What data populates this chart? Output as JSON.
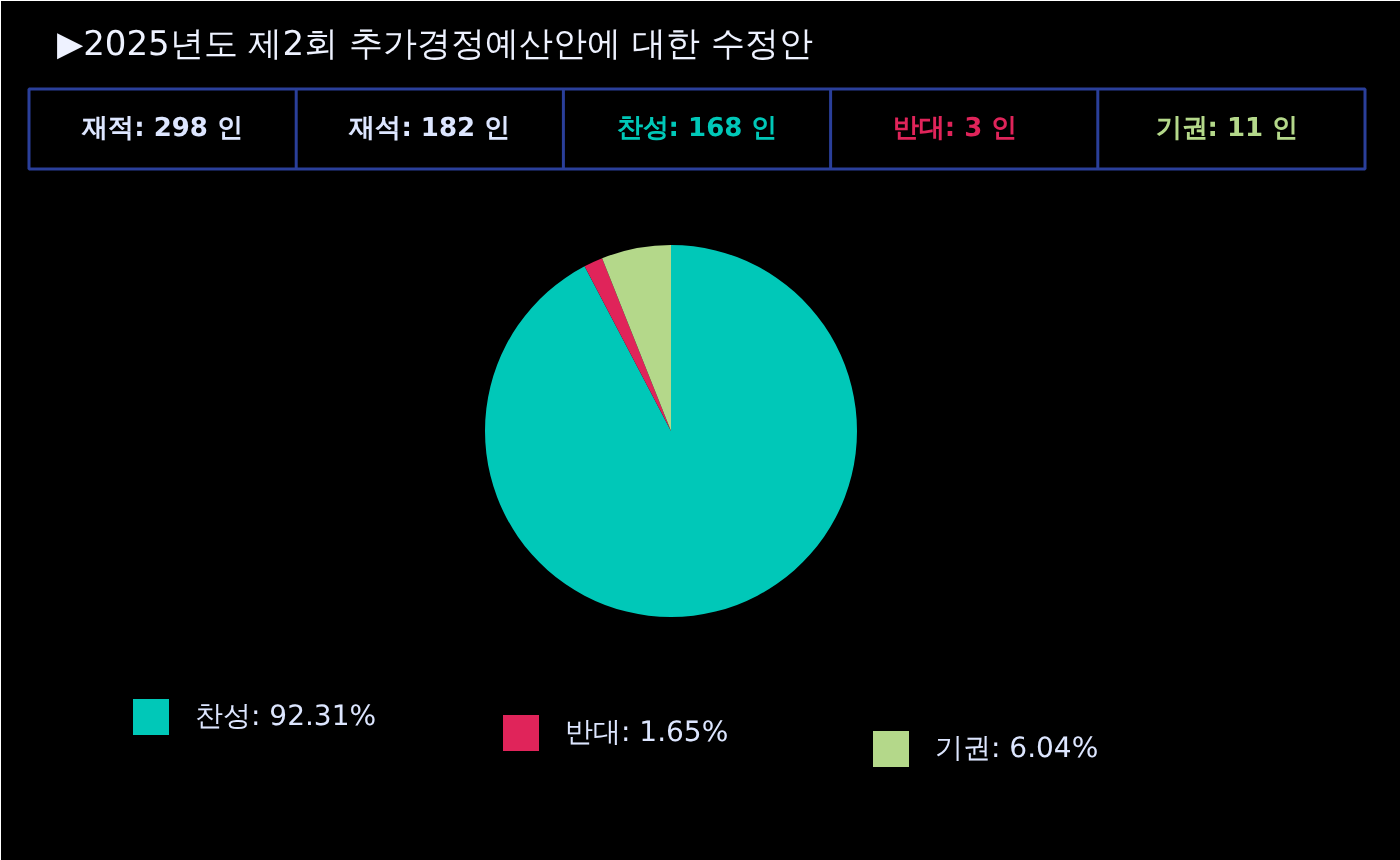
{
  "chart_data": {
    "type": "pie",
    "title": "▶2025년도 제2회 추가경정예산안에 대한 수정안",
    "annotations": [
      "재적: 298 인",
      "재석: 182 인",
      "찬성: 168 인",
      "반대:   3 인",
      "기권:  11 인"
    ],
    "categories": [
      "찬성",
      "반대",
      "기권"
    ],
    "values": [
      92.31,
      1.65,
      6.04
    ],
    "value_labels": [
      "92.31%",
      "1.65%",
      "6.04%"
    ],
    "colors": [
      "#00c8b8",
      "#e0245a",
      "#b4d88a"
    ],
    "legend": "bottom"
  }
}
